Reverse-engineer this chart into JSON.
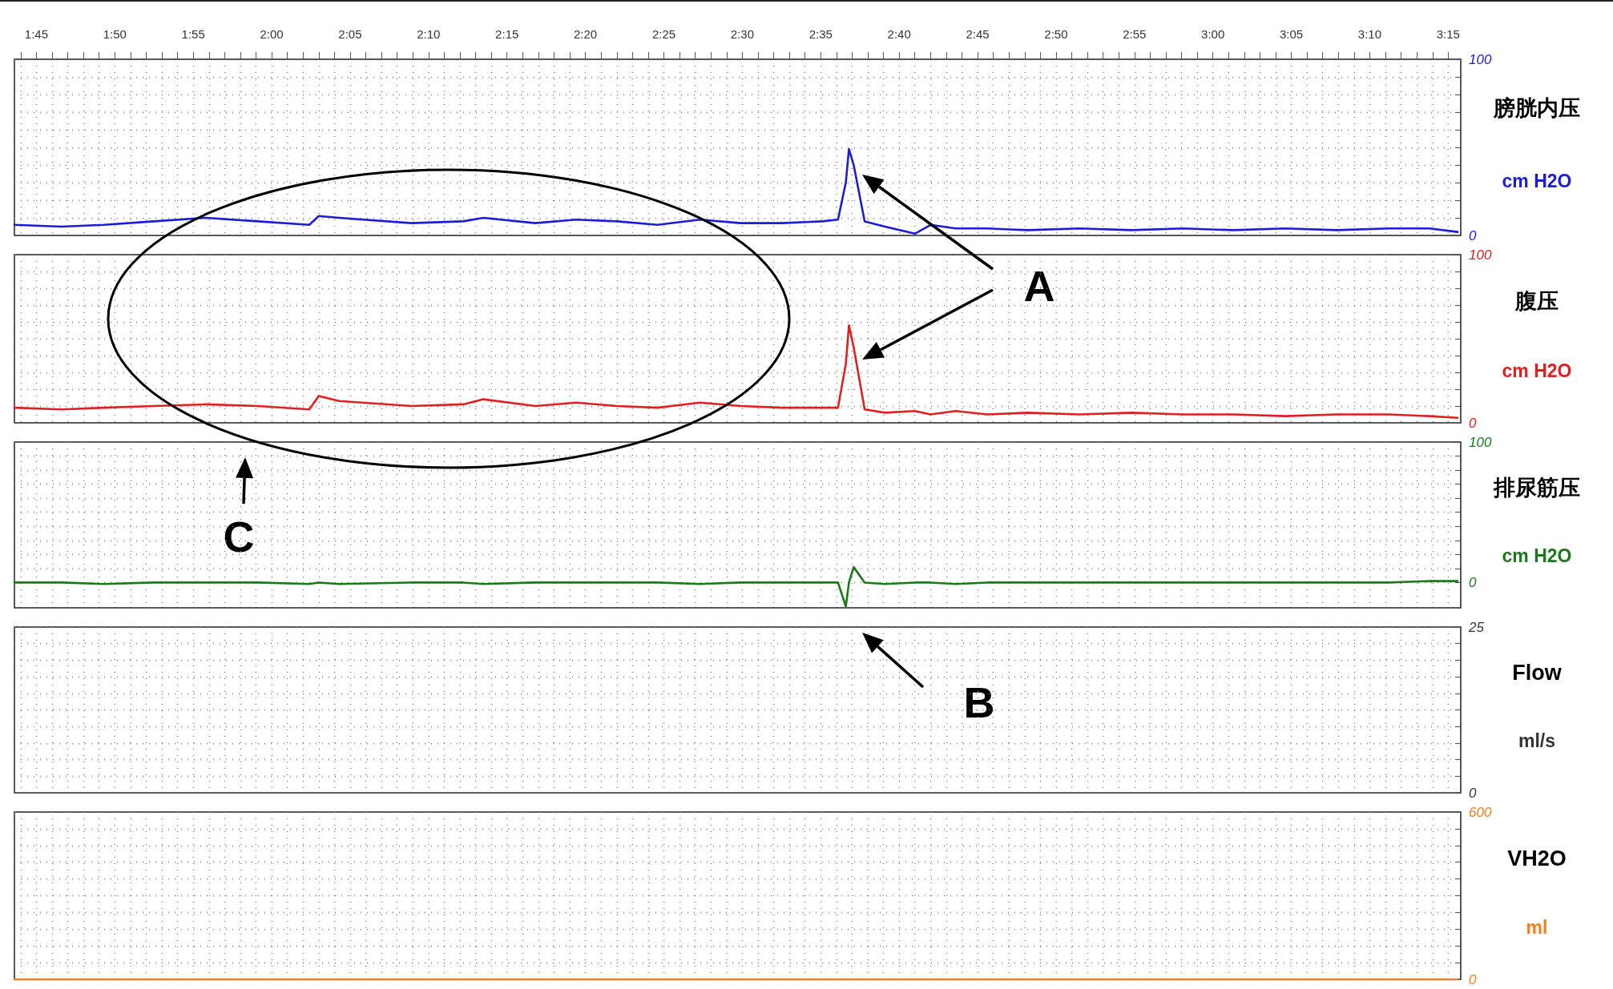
{
  "chart_data": [
    {
      "type": "line",
      "ylabel": "膀胱内压\ncm H2O",
      "xlim": [
        103.6,
        195.8
      ],
      "ylim": [
        0,
        100
      ],
      "grid": true,
      "xticks": [
        {
          "value": 104,
          "label": null
        },
        {
          "value": 105,
          "label": "1:45"
        },
        {
          "value": 106,
          "label": null
        },
        {
          "value": 107,
          "label": null
        },
        {
          "value": 108,
          "label": null
        },
        {
          "value": 109,
          "label": null
        },
        {
          "value": 110,
          "label": "1:50"
        },
        {
          "value": 111,
          "label": null
        },
        {
          "value": 112,
          "label": null
        },
        {
          "value": 113,
          "label": null
        },
        {
          "value": 114,
          "label": null
        },
        {
          "value": 115,
          "label": "1:55"
        },
        {
          "value": 116,
          "label": null
        },
        {
          "value": 117,
          "label": null
        },
        {
          "value": 118,
          "label": null
        },
        {
          "value": 119,
          "label": null
        },
        {
          "value": 120,
          "label": "2:00"
        },
        {
          "value": 121,
          "label": null
        },
        {
          "value": 122,
          "label": null
        },
        {
          "value": 123,
          "label": null
        },
        {
          "value": 124,
          "label": null
        },
        {
          "value": 125,
          "label": "2:05"
        },
        {
          "value": 126,
          "label": null
        },
        {
          "value": 127,
          "label": null
        },
        {
          "value": 128,
          "label": null
        },
        {
          "value": 129,
          "label": null
        },
        {
          "value": 130,
          "label": "2:10"
        },
        {
          "value": 131,
          "label": null
        },
        {
          "value": 132,
          "label": null
        },
        {
          "value": 133,
          "label": null
        },
        {
          "value": 134,
          "label": null
        },
        {
          "value": 135,
          "label": "2:15"
        },
        {
          "value": 136,
          "label": null
        },
        {
          "value": 137,
          "label": null
        },
        {
          "value": 138,
          "label": null
        },
        {
          "value": 139,
          "label": null
        },
        {
          "value": 140,
          "label": "2:20"
        },
        {
          "value": 141,
          "label": null
        },
        {
          "value": 142,
          "label": null
        },
        {
          "value": 143,
          "label": null
        },
        {
          "value": 144,
          "label": null
        },
        {
          "value": 145,
          "label": "2:25"
        },
        {
          "value": 146,
          "label": null
        },
        {
          "value": 147,
          "label": null
        },
        {
          "value": 148,
          "label": null
        },
        {
          "value": 149,
          "label": null
        },
        {
          "value": 150,
          "label": "2:30"
        },
        {
          "value": 151,
          "label": null
        },
        {
          "value": 152,
          "label": null
        },
        {
          "value": 153,
          "label": null
        },
        {
          "value": 154,
          "label": null
        },
        {
          "value": 155,
          "label": "2:35"
        },
        {
          "value": 156,
          "label": null
        },
        {
          "value": 157,
          "label": null
        },
        {
          "value": 158,
          "label": null
        },
        {
          "value": 159,
          "label": null
        },
        {
          "value": 160,
          "label": "2:40"
        },
        {
          "value": 161,
          "label": null
        },
        {
          "value": 162,
          "label": null
        },
        {
          "value": 163,
          "label": null
        },
        {
          "value": 164,
          "label": null
        },
        {
          "value": 165,
          "label": "2:45"
        },
        {
          "value": 166,
          "label": null
        },
        {
          "value": 167,
          "label": null
        },
        {
          "value": 168,
          "label": null
        },
        {
          "value": 169,
          "label": null
        },
        {
          "value": 170,
          "label": "2:50"
        },
        {
          "value": 171,
          "label": null
        },
        {
          "value": 172,
          "label": null
        },
        {
          "value": 173,
          "label": null
        },
        {
          "value": 174,
          "label": null
        },
        {
          "value": 175,
          "label": "2:55"
        },
        {
          "value": 176,
          "label": null
        },
        {
          "value": 177,
          "label": null
        },
        {
          "value": 178,
          "label": null
        },
        {
          "value": 179,
          "label": null
        },
        {
          "value": 180,
          "label": "3:00"
        },
        {
          "value": 181,
          "label": null
        },
        {
          "value": 182,
          "label": null
        },
        {
          "value": 183,
          "label": null
        },
        {
          "value": 184,
          "label": null
        },
        {
          "value": 185,
          "label": "3:05"
        },
        {
          "value": 186,
          "label": null
        },
        {
          "value": 187,
          "label": null
        },
        {
          "value": 188,
          "label": null
        },
        {
          "value": 189,
          "label": null
        },
        {
          "value": 190,
          "label": "3:10"
        },
        {
          "value": 191,
          "label": null
        },
        {
          "value": 192,
          "label": null
        },
        {
          "value": 193,
          "label": null
        },
        {
          "value": 194,
          "label": null
        },
        {
          "value": 195,
          "label": "3:15"
        }
      ],
      "yticks": [
        0,
        {
          "value": 10,
          "label": null
        },
        {
          "value": 20,
          "label": null
        },
        {
          "value": 30,
          "label": null
        },
        {
          "value": 40,
          "label": null
        },
        {
          "value": 50,
          "label": null
        },
        {
          "value": 60,
          "label": null
        },
        {
          "value": 70,
          "label": null
        },
        {
          "value": 80,
          "label": null
        },
        {
          "value": 90,
          "label": null
        },
        100
      ],
      "x": [
        103.6,
        106.6,
        109.3,
        112.5,
        115.8,
        119.1,
        122.4,
        123.0,
        124.3,
        128.9,
        132.2,
        133.5,
        136.8,
        139.4,
        142.0,
        144.6,
        147.3,
        149.9,
        152.5,
        155.1,
        156.1,
        156.6,
        156.8,
        157.1,
        157.8,
        159.1,
        161.0,
        162.0,
        163.6,
        165.6,
        168.2,
        171.5,
        174.8,
        178.1,
        181.3,
        184.6,
        187.9,
        191.2,
        193.8,
        195.6
      ],
      "series": [
        {
          "color": "#1c1cd8",
          "values": [
            6,
            5,
            6,
            8,
            10,
            8,
            6,
            11,
            10,
            7,
            8,
            10,
            7,
            9,
            8,
            6,
            9,
            7,
            7,
            8,
            9,
            30,
            49,
            40,
            8,
            5,
            1,
            6,
            4,
            4,
            3,
            4,
            3,
            4,
            3,
            4,
            3,
            4,
            4,
            2
          ]
        }
      ]
    },
    {
      "type": "line",
      "ylabel": "腹压\ncm H2O",
      "tick_labels": "y",
      "xlim": [
        103.6,
        195.8
      ],
      "ylim": [
        0,
        100
      ],
      "grid": true,
      "yticks": [
        0,
        {
          "value": 10,
          "label": null
        },
        {
          "value": 20,
          "label": null
        },
        {
          "value": 30,
          "label": null
        },
        {
          "value": 40,
          "label": null
        },
        {
          "value": 50,
          "label": null
        },
        {
          "value": 60,
          "label": null
        },
        {
          "value": 70,
          "label": null
        },
        {
          "value": 80,
          "label": null
        },
        {
          "value": 90,
          "label": null
        },
        100
      ],
      "annotations": [
        "A"
      ],
      "x": [
        103.6,
        106.6,
        109.3,
        112.5,
        115.8,
        119.1,
        122.4,
        123.0,
        124.3,
        128.9,
        132.2,
        133.5,
        136.8,
        139.4,
        142.0,
        144.6,
        147.3,
        149.9,
        152.5,
        155.1,
        156.1,
        156.6,
        156.8,
        157.1,
        157.8,
        159.1,
        161.0,
        162.0,
        163.6,
        165.6,
        168.2,
        171.5,
        174.8,
        178.1,
        181.3,
        184.6,
        187.9,
        191.2,
        193.8,
        195.6
      ],
      "series": [
        {
          "color": "#e02020",
          "values": [
            9,
            8,
            9,
            10,
            11,
            10,
            8,
            16,
            13,
            10,
            11,
            14,
            10,
            12,
            10,
            9,
            12,
            10,
            9,
            9,
            9,
            35,
            58,
            45,
            8,
            6,
            7,
            5,
            7,
            5,
            6,
            5,
            6,
            5,
            5,
            4,
            5,
            5,
            4,
            3
          ]
        }
      ]
    },
    {
      "type": "line",
      "ylabel": "排尿筋压\ncm H2O",
      "tick_labels": "y",
      "xlim": [
        103.6,
        195.8
      ],
      "ylim": [
        -18,
        100
      ],
      "grid": true,
      "yticks": [
        0,
        {
          "value": 10,
          "label": null
        },
        {
          "value": 20,
          "label": null
        },
        {
          "value": 30,
          "label": null
        },
        {
          "value": 40,
          "label": null
        },
        {
          "value": 50,
          "label": null
        },
        {
          "value": 60,
          "label": null
        },
        {
          "value": 70,
          "label": null
        },
        {
          "value": 80,
          "label": null
        },
        {
          "value": 90,
          "label": null
        },
        100
      ],
      "annotations": [
        "C"
      ],
      "x": [
        103.6,
        106.6,
        109.3,
        112.5,
        115.8,
        119.1,
        122.4,
        123.0,
        124.3,
        128.9,
        132.2,
        133.5,
        136.8,
        139.4,
        142.0,
        144.6,
        147.3,
        149.9,
        152.5,
        155.1,
        156.1,
        156.6,
        156.8,
        157.1,
        157.8,
        159.1,
        161.0,
        162.0,
        163.6,
        165.6,
        168.2,
        171.5,
        174.8,
        178.1,
        181.3,
        184.6,
        187.9,
        191.2,
        193.8,
        195.6
      ],
      "series": [
        {
          "color": "#1a7a1a",
          "values": [
            0,
            0,
            -1,
            0,
            0,
            0,
            -1,
            0,
            -1,
            0,
            0,
            -1,
            0,
            0,
            0,
            0,
            -1,
            0,
            0,
            0,
            0,
            -17,
            0,
            11,
            0,
            -1,
            0,
            0,
            -1,
            0,
            0,
            0,
            0,
            0,
            0,
            0,
            0,
            0,
            1,
            1
          ]
        }
      ]
    },
    {
      "type": "line",
      "ylabel": "Flow\nml/s",
      "tick_labels": "y",
      "xlim": [
        103.6,
        195.8
      ],
      "ylim": [
        0,
        25
      ],
      "grid": true,
      "yticks": [
        0,
        {
          "value": 2.5,
          "label": null
        },
        {
          "value": 5,
          "label": null
        },
        {
          "value": 7.5,
          "label": null
        },
        {
          "value": 10,
          "label": null
        },
        {
          "value": 12.5,
          "label": null
        },
        {
          "value": 15,
          "label": null
        },
        {
          "value": 17.5,
          "label": null
        },
        {
          "value": 20,
          "label": null
        },
        {
          "value": 22.5,
          "label": null
        },
        25
      ],
      "annotations": [
        "B"
      ]
    },
    {
      "type": "line",
      "ylabel": "VH2O\nml",
      "tick_labels": "y",
      "xlim": [
        103.6,
        195.8
      ],
      "ylim": [
        0,
        600
      ],
      "grid": true,
      "yticks": [
        0,
        {
          "value": 60,
          "label": null
        },
        {
          "value": 120,
          "label": null
        },
        {
          "value": 180,
          "label": null
        },
        {
          "value": 240,
          "label": null
        },
        {
          "value": 300,
          "label": null
        },
        {
          "value": 360,
          "label": null
        },
        {
          "value": 420,
          "label": null
        },
        {
          "value": 480,
          "label": null
        },
        {
          "value": 540,
          "label": null
        },
        600
      ],
      "x": [
        103.6,
        195.6
      ],
      "series": [
        {
          "color": "#f08020",
          "values": [
            0,
            0
          ]
        }
      ]
    }
  ]
}
